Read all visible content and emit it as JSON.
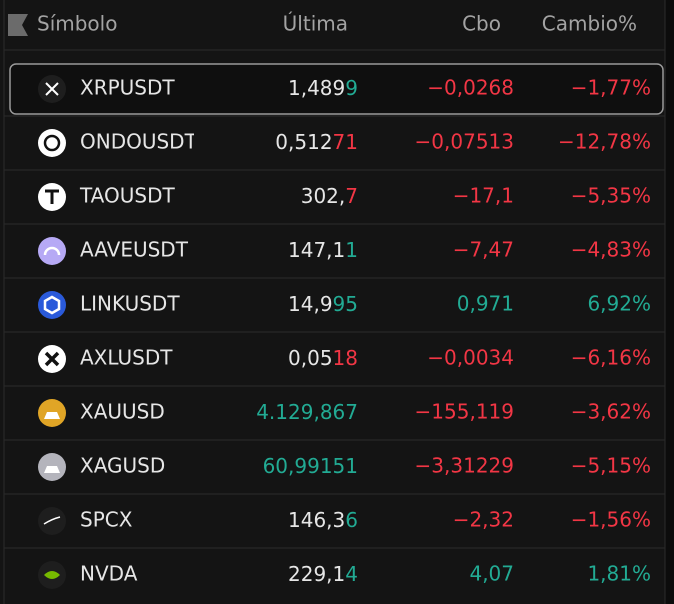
{
  "header": {
    "symbol": "Símbolo",
    "last": "Última",
    "change": "Cbo",
    "change_pct": "Cambio%"
  },
  "rows": [
    {
      "symbol": "XRPUSDT",
      "last": [
        {
          "text": "1,489",
          "color": "#e6e6e6"
        },
        {
          "text": "9",
          "color": "#22ab94"
        }
      ],
      "change": "−0,0268",
      "change_pct": "−1,77%",
      "change_color": "#f23645",
      "selected": true
    },
    {
      "symbol": "ONDOUSDT",
      "last": [
        {
          "text": "0,512",
          "color": "#e6e6e6"
        },
        {
          "text": "71",
          "color": "#f23645"
        }
      ],
      "change": "−0,07513",
      "change_pct": "−12,78%",
      "change_color": "#f23645"
    },
    {
      "symbol": "TAOUSDT",
      "last": [
        {
          "text": "302,",
          "color": "#e6e6e6"
        },
        {
          "text": "7",
          "color": "#f23645"
        }
      ],
      "change": "−17,1",
      "change_pct": "−5,35%",
      "change_color": "#f23645"
    },
    {
      "symbol": "AAVEUSDT",
      "last": [
        {
          "text": "147,1",
          "color": "#e6e6e6"
        },
        {
          "text": "1",
          "color": "#22ab94"
        }
      ],
      "change": "−7,47",
      "change_pct": "−4,83%",
      "change_color": "#f23645"
    },
    {
      "symbol": "LINKUSDT",
      "last": [
        {
          "text": "14,9",
          "color": "#e6e6e6"
        },
        {
          "text": "95",
          "color": "#22ab94"
        }
      ],
      "change": "0,971",
      "change_pct": "6,92%",
      "change_color": "#22ab94"
    },
    {
      "symbol": "AXLUSDT",
      "last": [
        {
          "text": "0,05",
          "color": "#e6e6e6"
        },
        {
          "text": "18",
          "color": "#f23645"
        }
      ],
      "change": "−0,0034",
      "change_pct": "−6,16%",
      "change_color": "#f23645"
    },
    {
      "symbol": "XAUUSD",
      "last": [
        {
          "text": "4.129,867",
          "color": "#22ab94"
        }
      ],
      "change": "−155,119",
      "change_pct": "−3,62%",
      "change_color": "#f23645"
    },
    {
      "symbol": "XAGUSD",
      "last": [
        {
          "text": "60,99151",
          "color": "#22ab94"
        }
      ],
      "change": "−3,31229",
      "change_pct": "−5,15%",
      "change_color": "#f23645"
    },
    {
      "symbol": "SPCX",
      "last": [
        {
          "text": "146,3",
          "color": "#e6e6e6"
        },
        {
          "text": "6",
          "color": "#22ab94"
        }
      ],
      "change": "−2,32",
      "change_pct": "−1,56%",
      "change_color": "#f23645"
    },
    {
      "symbol": "NVDA",
      "last": [
        {
          "text": "229,1",
          "color": "#e6e6e6"
        },
        {
          "text": "4",
          "color": "#22ab94"
        }
      ],
      "change": "4,07",
      "change_pct": "1,81%",
      "change_color": "#22ab94"
    }
  ]
}
